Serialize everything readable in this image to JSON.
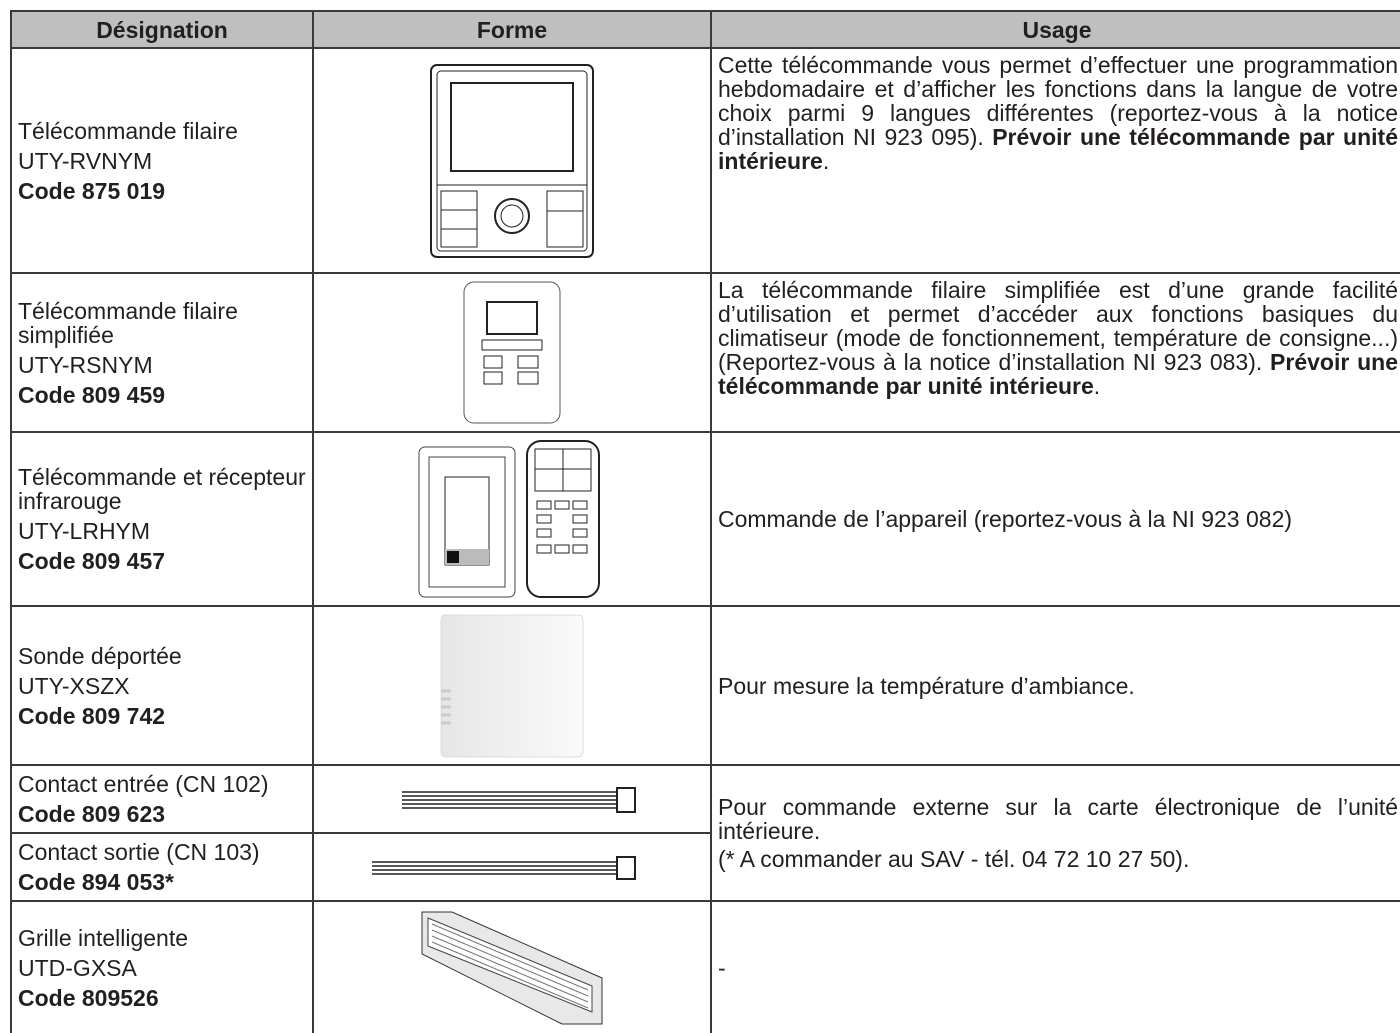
{
  "table": {
    "header": [
      "Désignation",
      "Forme",
      "Usage"
    ],
    "rows": [
      {
        "designation": [
          "Télécommande filaire",
          "UTY-RVNYM"
        ],
        "code": "Code 875 019",
        "usage": [
          [
            "Cette télécommande vous permet d’effectuer une programmation hebdomadaire et d’afficher les fonctions dans la langue de votre choix parmi 9 langues différentes (reportez-vous à la notice d’installation NI 923 095). ",
            "Prévoir une télécommande par unité intérieure",
            "."
          ]
        ]
      },
      {
        "designation": [
          "Télécommande filaire simplifiée",
          "UTY-RSNYM"
        ],
        "code": "Code 809 459",
        "usage": [
          [
            "La télécommande filaire simplifiée est d’une grande facilité d’utilisation et permet d’accéder aux fonctions basiques du climatiseur (mode de fonctionnement, température de consigne...) (Reportez-vous à la notice d’installation NI 923 083). ",
            "Prévoir une télécommande par unité intérieure",
            "."
          ]
        ]
      },
      {
        "designation": [
          "Télécommande et récepteur infrarouge",
          "UTY-LRHYM"
        ],
        "code": "Code 809 457",
        "usage": [
          [
            "Commande de l’appareil (reportez-vous à la NI 923 082)"
          ]
        ]
      },
      {
        "designation": [
          "Sonde déportée",
          "UTY-XSZX"
        ],
        "code": "Code 809 742",
        "usage": [
          [
            "Pour mesure la température d’ambiance."
          ]
        ]
      },
      {
        "designation": [
          "Contact entrée (CN 102)"
        ],
        "code": "Code 809 623",
        "usage": [
          [
            "Pour commande externe sur la carte électronique de l’unité intérieure."
          ],
          [
            "(* A commander au SAV - tél. 04 72 10 27 50)."
          ]
        ]
      },
      {
        "designation": [
          "Contact sortie (CN 103)"
        ],
        "code": "Code 894 053*"
      },
      {
        "designation": [
          "Grille intelligente",
          "UTD-GXSA"
        ],
        "code": "Code 809526",
        "usage": [
          [
            "-"
          ]
        ]
      }
    ]
  }
}
